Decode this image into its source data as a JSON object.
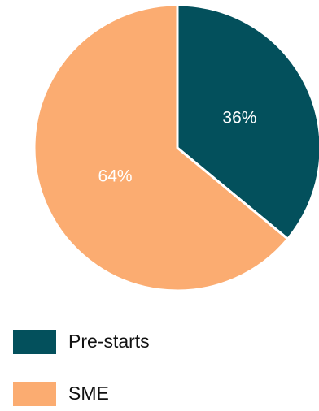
{
  "chart_data": {
    "type": "pie",
    "title": "",
    "slices": [
      {
        "label": "Pre-starts",
        "value": 36,
        "display": "36%",
        "color": "#03505c"
      },
      {
        "label": "SME",
        "value": 64,
        "display": "64%",
        "color": "#fbac71"
      }
    ],
    "start_angle": "top",
    "direction": "clockwise",
    "legend": {
      "position": "bottom-left"
    }
  }
}
